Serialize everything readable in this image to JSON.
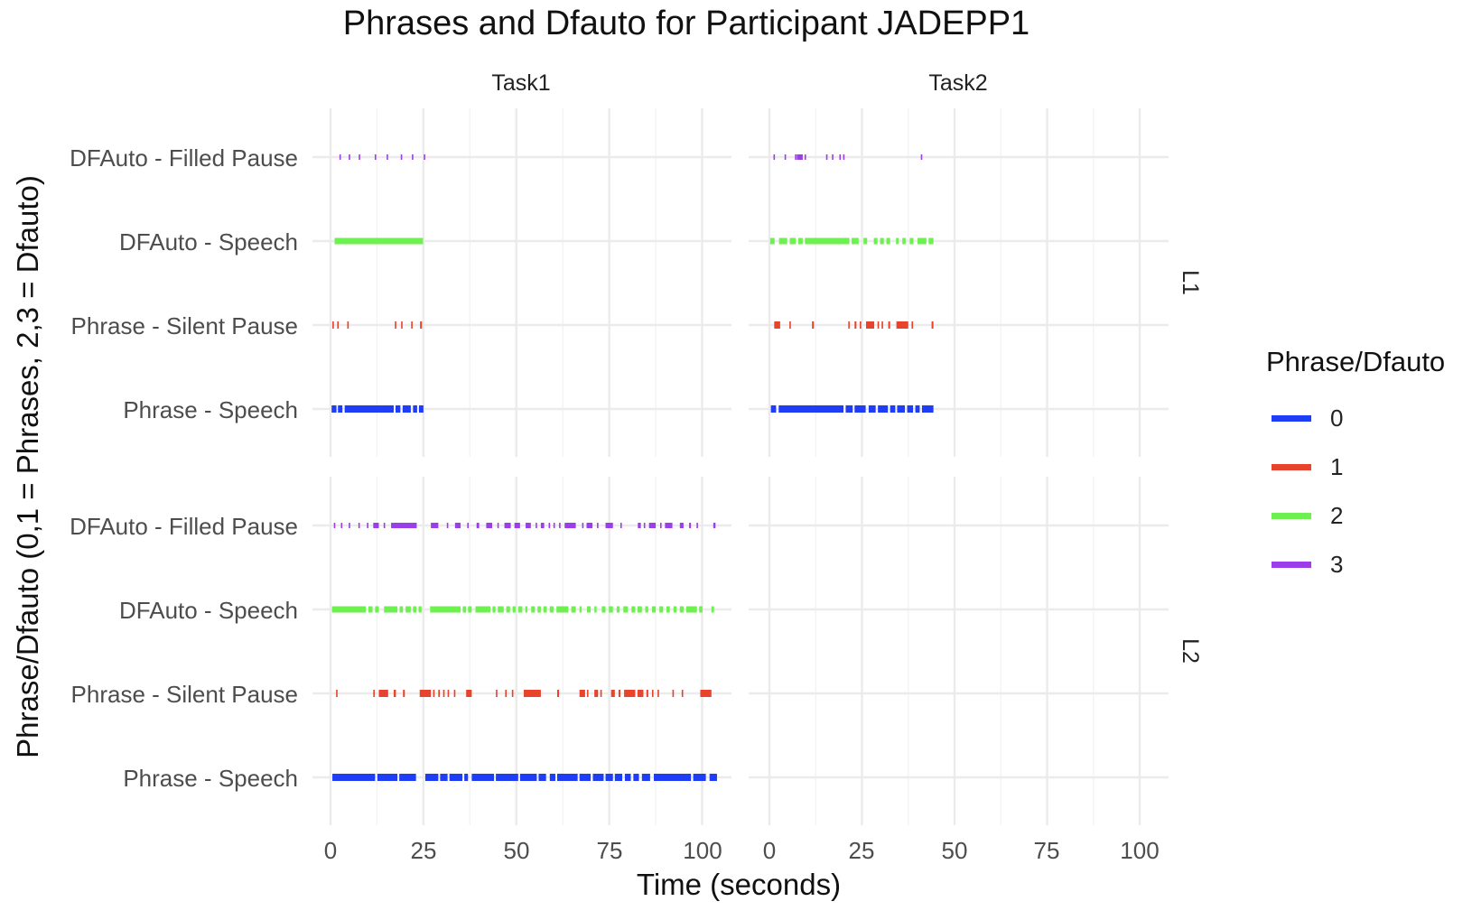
{
  "chart_data": {
    "type": "scatter",
    "title": "Phrases and Dfauto for Participant JADEPP1",
    "xlabel": "Time (seconds)",
    "ylabel": "Phrase/Dfauto (0,1 = Phrases, 2,3 = Dfauto)",
    "xlim": [
      0,
      105
    ],
    "x_ticks": [
      "0",
      "25",
      "50",
      "75",
      "100"
    ],
    "x_tick_values": [
      0,
      25,
      50,
      75,
      100
    ],
    "y_categories": [
      "Phrase - Speech",
      "Phrase - Silent Pause",
      "DFAuto - Speech",
      "DFAuto - Filled Pause"
    ],
    "facet_columns": [
      "Task1",
      "Task2"
    ],
    "facet_rows": [
      "L1",
      "L2"
    ],
    "legend": {
      "title": "Phrase/Dfauto",
      "placement": "right",
      "entries": [
        {
          "label": "0",
          "color": "#1f3df7"
        },
        {
          "label": "1",
          "color": "#e8432c"
        },
        {
          "label": "2",
          "color": "#6ef051"
        },
        {
          "label": "3",
          "color": "#9b3de8"
        }
      ]
    },
    "grid": true,
    "panels": [
      {
        "column": "Task1",
        "row": "L1",
        "series": [
          {
            "code": "0",
            "category": "Phrase - Speech",
            "intervals": [
              [
                0.3,
                1.6
              ],
              [
                2.0,
                3.2
              ],
              [
                3.8,
                17.0
              ],
              [
                17.5,
                18.8
              ],
              [
                19.4,
                21.6
              ],
              [
                22.2,
                23.3
              ],
              [
                23.8,
                25.0
              ]
            ]
          },
          {
            "code": "1",
            "category": "Phrase - Silent Pause",
            "intervals": [
              [
                0.5,
                0.9
              ],
              [
                1.8,
                2.1
              ],
              [
                4.5,
                4.9
              ],
              [
                17.3,
                17.7
              ],
              [
                19.0,
                19.3
              ],
              [
                21.7,
                22.0
              ],
              [
                24.1,
                24.6
              ]
            ]
          },
          {
            "code": "2",
            "category": "DFAuto - Speech",
            "intervals": [
              [
                1.1,
                24.9
              ]
            ]
          },
          {
            "code": "3",
            "category": "DFAuto - Filled Pause",
            "intervals": [
              [
                2.4,
                2.6
              ],
              [
                4.9,
                5.1
              ],
              [
                7.6,
                7.8
              ],
              [
                11.9,
                12.1
              ],
              [
                15.1,
                15.3
              ],
              [
                18.9,
                19.1
              ],
              [
                21.9,
                22.1
              ],
              [
                25.1,
                25.3
              ]
            ]
          }
        ]
      },
      {
        "column": "Task2",
        "row": "L1",
        "series": [
          {
            "code": "0",
            "category": "Phrase - Speech",
            "intervals": [
              [
                0.4,
                1.8
              ],
              [
                2.5,
                20.0
              ],
              [
                20.6,
                22.5
              ],
              [
                23.0,
                26.0
              ],
              [
                26.8,
                28.7
              ],
              [
                29.3,
                32.0
              ],
              [
                32.6,
                34.0
              ],
              [
                34.5,
                36.6
              ],
              [
                37.2,
                38.8
              ],
              [
                39.4,
                40.6
              ],
              [
                41.2,
                44.3
              ]
            ]
          },
          {
            "code": "1",
            "category": "Phrase - Silent Pause",
            "intervals": [
              [
                1.3,
                2.9
              ],
              [
                5.4,
                5.8
              ],
              [
                11.5,
                12.0
              ],
              [
                21.3,
                21.6
              ],
              [
                23.0,
                23.5
              ],
              [
                24.4,
                24.8
              ],
              [
                26.1,
                28.3
              ],
              [
                29.2,
                29.6
              ],
              [
                30.3,
                30.7
              ],
              [
                32.1,
                32.6
              ],
              [
                34.3,
                37.5
              ],
              [
                38.4,
                38.8
              ],
              [
                43.8,
                44.3
              ]
            ]
          },
          {
            "code": "2",
            "category": "DFAuto - Speech",
            "intervals": [
              [
                0.2,
                1.4
              ],
              [
                2.6,
                4.8
              ],
              [
                5.5,
                7.1
              ],
              [
                7.8,
                9.0
              ],
              [
                9.6,
                21.6
              ],
              [
                22.2,
                24.1
              ],
              [
                25.4,
                26.4
              ],
              [
                28.2,
                29.2
              ],
              [
                29.9,
                30.9
              ],
              [
                31.6,
                32.6
              ],
              [
                34.2,
                34.9
              ],
              [
                35.9,
                36.8
              ],
              [
                37.9,
                38.9
              ],
              [
                40.0,
                42.4
              ],
              [
                43.0,
                44.3
              ]
            ]
          },
          {
            "code": "3",
            "category": "DFAuto - Filled Pause",
            "intervals": [
              [
                1.1,
                1.3
              ],
              [
                4.1,
                4.3
              ],
              [
                6.9,
                7.1
              ],
              [
                7.4,
                9.0
              ],
              [
                9.5,
                9.7
              ],
              [
                15.3,
                15.5
              ],
              [
                16.9,
                17.1
              ],
              [
                18.9,
                19.1
              ],
              [
                19.9,
                20.1
              ],
              [
                40.9,
                41.2
              ]
            ]
          }
        ]
      },
      {
        "column": "Task1",
        "row": "L2",
        "series": [
          {
            "code": "0",
            "category": "Phrase - Speech",
            "intervals": [
              [
                0.5,
                12.0
              ],
              [
                12.6,
                18.0
              ],
              [
                18.5,
                23.0
              ],
              [
                25.5,
                29.0
              ],
              [
                29.5,
                31.5
              ],
              [
                32.0,
                35.5
              ],
              [
                36.0,
                37.0
              ],
              [
                38.0,
                44.0
              ],
              [
                44.5,
                50.5
              ],
              [
                51.0,
                55.5
              ],
              [
                56.0,
                58.0
              ],
              [
                59.0,
                60.5
              ],
              [
                61.0,
                66.5
              ],
              [
                67.0,
                70.0
              ],
              [
                70.6,
                73.5
              ],
              [
                74.0,
                76.0
              ],
              [
                76.5,
                78.5
              ],
              [
                79.2,
                80.8
              ],
              [
                81.5,
                83.0
              ],
              [
                83.8,
                86.0
              ],
              [
                87.0,
                97.0
              ],
              [
                97.6,
                101.0
              ],
              [
                102.0,
                104.0
              ]
            ]
          },
          {
            "code": "1",
            "category": "Phrase - Silent Pause",
            "intervals": [
              [
                1.5,
                1.9
              ],
              [
                11.5,
                11.9
              ],
              [
                13.0,
                15.5
              ],
              [
                17.0,
                17.6
              ],
              [
                19.5,
                20.0
              ],
              [
                24.0,
                27.0
              ],
              [
                27.6,
                28.0
              ],
              [
                29.0,
                29.4
              ],
              [
                30.3,
                30.7
              ],
              [
                31.5,
                31.9
              ],
              [
                33.2,
                33.6
              ],
              [
                36.5,
                38.0
              ],
              [
                44.5,
                44.9
              ],
              [
                47.0,
                47.4
              ],
              [
                48.8,
                49.2
              ],
              [
                52.0,
                56.6
              ],
              [
                61.0,
                61.5
              ],
              [
                67.0,
                68.5
              ],
              [
                69.0,
                69.4
              ],
              [
                71.0,
                72.0
              ],
              [
                72.6,
                73.0
              ],
              [
                75.5,
                76.5
              ],
              [
                77.5,
                78.0
              ],
              [
                79.0,
                82.0
              ],
              [
                82.6,
                84.2
              ],
              [
                85.0,
                85.5
              ],
              [
                86.5,
                86.9
              ],
              [
                88.0,
                88.4
              ],
              [
                92.0,
                92.4
              ],
              [
                94.5,
                94.9
              ],
              [
                99.5,
                102.5
              ]
            ]
          },
          {
            "code": "2",
            "category": "DFAuto - Speech",
            "intervals": [
              [
                0.4,
                9.5
              ],
              [
                10.2,
                11.3
              ],
              [
                12.0,
                13.0
              ],
              [
                14.4,
                18.0
              ],
              [
                18.6,
                19.5
              ],
              [
                20.2,
                21.6
              ],
              [
                22.2,
                23.1
              ],
              [
                23.7,
                24.5
              ],
              [
                26.8,
                35.0
              ],
              [
                35.6,
                36.5
              ],
              [
                37.0,
                38.0
              ],
              [
                39.0,
                43.0
              ],
              [
                43.6,
                44.4
              ],
              [
                45.0,
                46.6
              ],
              [
                47.3,
                48.3
              ],
              [
                49.0,
                49.8
              ],
              [
                50.5,
                51.6
              ],
              [
                52.4,
                53.0
              ],
              [
                54.0,
                55.0
              ],
              [
                55.7,
                56.6
              ],
              [
                57.3,
                58.2
              ],
              [
                59.0,
                60.0
              ],
              [
                60.8,
                64.0
              ],
              [
                64.8,
                66.0
              ],
              [
                67.0,
                67.6
              ],
              [
                69.0,
                70.0
              ],
              [
                71.0,
                71.6
              ],
              [
                73.0,
                74.0
              ],
              [
                74.9,
                76.0
              ],
              [
                77.0,
                77.8
              ],
              [
                78.8,
                80.0
              ],
              [
                81.0,
                82.0
              ],
              [
                82.6,
                83.8
              ],
              [
                84.7,
                85.5
              ],
              [
                86.5,
                87.5
              ],
              [
                88.5,
                89.5
              ],
              [
                90.4,
                91.3
              ],
              [
                92.3,
                93.1
              ],
              [
                94.0,
                95.0
              ],
              [
                95.7,
                98.6
              ],
              [
                99.2,
                100.1
              ],
              [
                102.5,
                103.2
              ]
            ]
          },
          {
            "code": "3",
            "category": "DFAuto - Filled Pause",
            "intervals": [
              [
                0.9,
                1.2
              ],
              [
                2.8,
                3.1
              ],
              [
                4.9,
                5.2
              ],
              [
                7.5,
                7.8
              ],
              [
                9.8,
                10.1
              ],
              [
                11.5,
                13.0
              ],
              [
                14.3,
                14.6
              ],
              [
                16.3,
                23.2
              ],
              [
                27.0,
                29.0
              ],
              [
                31.3,
                31.6
              ],
              [
                33.5,
                35.0
              ],
              [
                36.8,
                37.1
              ],
              [
                39.3,
                40.0
              ],
              [
                41.9,
                43.5
              ],
              [
                44.9,
                45.2
              ],
              [
                46.8,
                48.5
              ],
              [
                49.5,
                51.0
              ],
              [
                52.5,
                53.9
              ],
              [
                55.2,
                55.5
              ],
              [
                56.6,
                57.5
              ],
              [
                58.7,
                59.0
              ],
              [
                60.0,
                60.3
              ],
              [
                61.5,
                61.8
              ],
              [
                63.0,
                66.0
              ],
              [
                67.7,
                68.0
              ],
              [
                68.9,
                70.5
              ],
              [
                71.7,
                72.0
              ],
              [
                74.0,
                76.0
              ],
              [
                78.0,
                78.3
              ],
              [
                82.7,
                83.5
              ],
              [
                84.3,
                84.6
              ],
              [
                85.7,
                87.5
              ],
              [
                88.7,
                89.0
              ],
              [
                90.0,
                92.0
              ],
              [
                94.0,
                95.0
              ],
              [
                96.5,
                97.0
              ],
              [
                98.5,
                98.8
              ],
              [
                103.0,
                103.6
              ]
            ]
          }
        ]
      },
      {
        "column": "Task2",
        "row": "L2",
        "series": []
      }
    ]
  }
}
